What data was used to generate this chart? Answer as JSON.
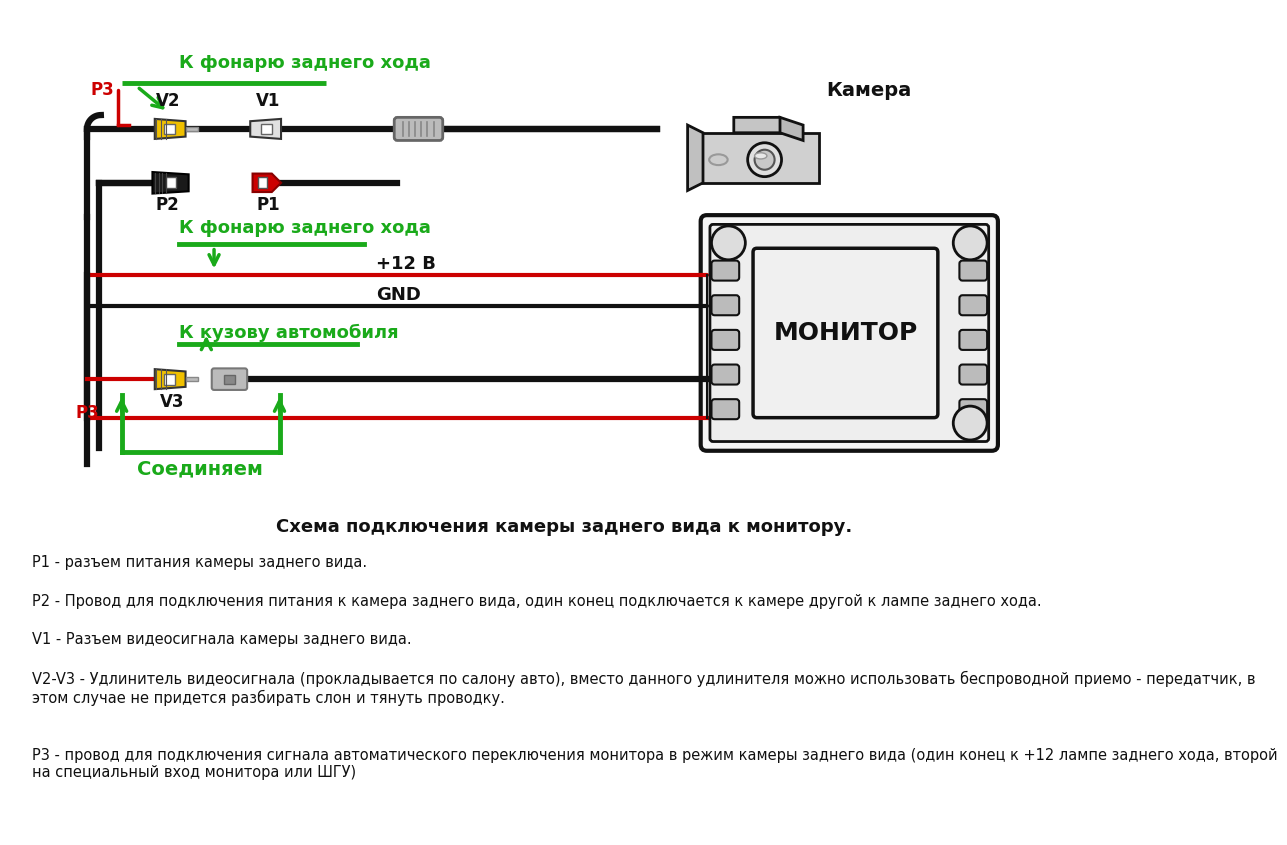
{
  "title": "Схема подключения камеры заднего вида к монитору.",
  "bg_color": "#ffffff",
  "green_color": "#1aaa1a",
  "red_color": "#cc0000",
  "black_color": "#111111",
  "yellow_color": "#f0c000",
  "gray_color": "#aaaaaa",
  "dark_gray": "#444444",
  "label_p3_top": "P3",
  "label_v2": "V2",
  "label_v1": "V1",
  "label_p2": "P2",
  "label_p1": "P1",
  "label_camera": "Камера",
  "label_monitor": "МОНИТОР",
  "label_12v": "+12 В",
  "label_gnd": "GND",
  "label_top_green": "К фонарю заднего хода",
  "label_mid_green": "К фонарю заднего хода",
  "label_kuzov": "К кузову автомобиля",
  "label_v3": "V3",
  "label_p3_bot": "P3",
  "label_soed": "Соединяем",
  "legend_p1": "P1 - разъем питания камеры заднего вида.",
  "legend_p2": "P2 - Провод для подключения питания к камера заднего вида, один конец подключается к камере другой к лампе заднего хода.",
  "legend_v1": "V1 - Разъем видеосигнала камеры заднего вида.",
  "legend_v2v3": "V2-V3 - Удлинитель видеосигнала (прокладывается по салону авто), вместо данного удлинителя можно использовать беспроводной приемо - передатчик, в\nэтом случае не придется разбирать слон и тянуть проводку.",
  "legend_p3": "Р3 - провод для подключения сигнала автоматического переключения монитора в режим камеры заднего вида (один конец к +12 лампе заднего хода, второй\nна специальный вход монитора или ШГУ)"
}
